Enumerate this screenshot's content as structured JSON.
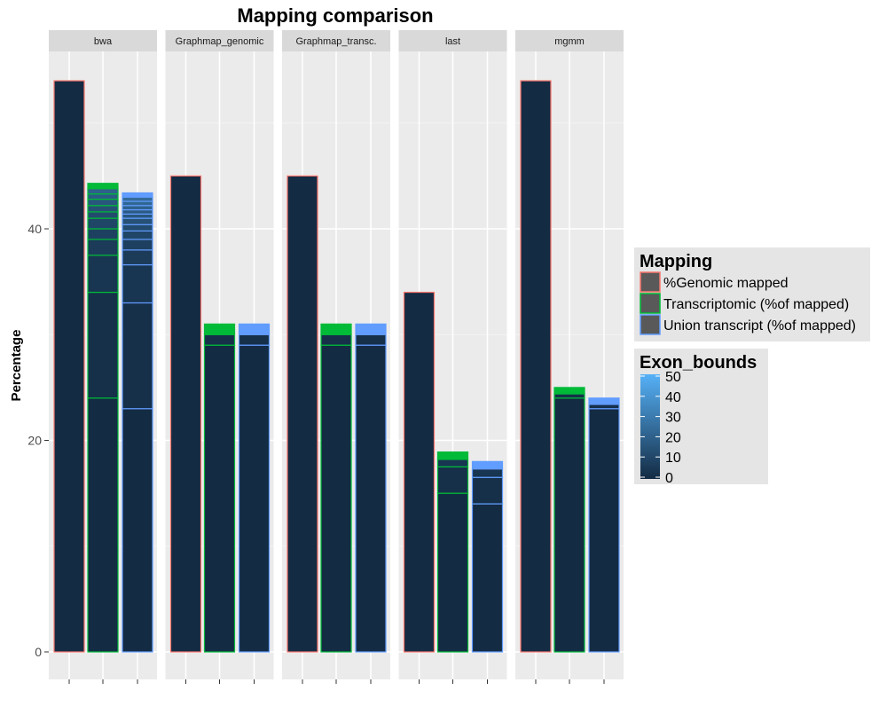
{
  "chart_data": {
    "type": "bar",
    "title": "Mapping comparison",
    "xlabel": "",
    "ylabel": "Percentage",
    "ylim": [
      0,
      56.5
    ],
    "yticks": [
      0,
      20,
      40
    ],
    "grid": true,
    "legend_position": "right",
    "panels": [
      {
        "name": "bwa",
        "bars": [
          {
            "series": "%Genomic mapped",
            "total": 54,
            "bounds": []
          },
          {
            "series": "Transcriptomic (%of mapped)",
            "total": 44.3,
            "bounds": [
              24,
              34,
              37.5,
              39,
              40,
              41,
              41.6,
              42.2,
              42.8,
              43.3,
              43.8
            ]
          },
          {
            "series": "Union transcript (%of mapped)",
            "total": 43.4,
            "bounds": [
              23,
              33,
              36.6,
              38,
              39,
              39.8,
              40.4,
              41,
              41.4,
              41.8,
              42.2,
              42.6,
              43
            ]
          }
        ]
      },
      {
        "name": "Graphmap_genomic",
        "bars": [
          {
            "series": "%Genomic mapped",
            "total": 45,
            "bounds": []
          },
          {
            "series": "Transcriptomic (%of mapped)",
            "total": 31,
            "bounds": [
              29,
              30
            ]
          },
          {
            "series": "Union transcript (%of mapped)",
            "total": 31,
            "bounds": [
              29,
              30
            ]
          }
        ]
      },
      {
        "name": "Graphmap_transc.",
        "bars": [
          {
            "series": "%Genomic mapped",
            "total": 45,
            "bounds": []
          },
          {
            "series": "Transcriptomic (%of mapped)",
            "total": 31,
            "bounds": [
              29,
              30
            ]
          },
          {
            "series": "Union transcript (%of mapped)",
            "total": 31,
            "bounds": [
              29,
              30
            ]
          }
        ]
      },
      {
        "name": "last",
        "bars": [
          {
            "series": "%Genomic mapped",
            "total": 34,
            "bounds": []
          },
          {
            "series": "Transcriptomic (%of mapped)",
            "total": 18.9,
            "bounds": [
              15,
              17.5,
              18.2
            ]
          },
          {
            "series": "Union transcript (%of mapped)",
            "total": 18,
            "bounds": [
              14,
              16.5,
              17.3
            ]
          }
        ]
      },
      {
        "name": "mgmm",
        "bars": [
          {
            "series": "%Genomic mapped",
            "total": 54,
            "bounds": []
          },
          {
            "series": "Transcriptomic (%of mapped)",
            "total": 25,
            "bounds": [
              24,
              24.4
            ]
          },
          {
            "series": "Union transcript (%of mapped)",
            "total": 24,
            "bounds": [
              23,
              23.4
            ]
          }
        ]
      }
    ],
    "legend_mapping": {
      "title": "Mapping",
      "items": [
        {
          "label": "%Genomic mapped",
          "color": "#F8766D"
        },
        {
          "label": "Transcriptomic (%of mapped)",
          "color": "#00BA38"
        },
        {
          "label": "Union transcript (%of mapped)",
          "color": "#619CFF"
        }
      ]
    },
    "legend_exon": {
      "title": "Exon_bounds",
      "range": [
        0,
        50
      ],
      "ticks": [
        "0",
        "10",
        "20",
        "30",
        "40",
        "50"
      ],
      "color_low": "#132B43",
      "color_high": "#56B1F7"
    }
  }
}
